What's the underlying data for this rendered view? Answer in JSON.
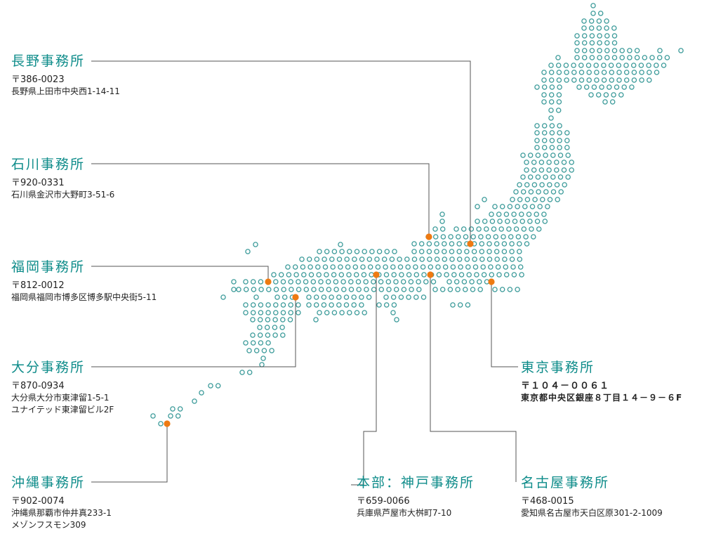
{
  "colors": {
    "dot": "#3a9a99",
    "marker": "#ee7a12",
    "leader": "#555555",
    "title": "#0e8c8a"
  },
  "offices": [
    {
      "id": "nagano",
      "name": "長野事務所",
      "postal": "〒386-0023",
      "address": [
        "長野県上田市中央西1-14-11"
      ]
    },
    {
      "id": "ishikawa",
      "name": "石川事務所",
      "postal": "〒920-0331",
      "address": [
        "石川県金沢市大野町3-51-6"
      ]
    },
    {
      "id": "fukuoka",
      "name": "福岡事務所",
      "postal": "〒812-0012",
      "address": [
        "福岡県福岡市博多区博多駅中央街5-11"
      ]
    },
    {
      "id": "oita",
      "name": "大分事務所",
      "postal": "〒870-0934",
      "address": [
        "大分県大分市東津留1-5-1",
        "ユナイテッド東津留ビル2F"
      ]
    },
    {
      "id": "okinawa",
      "name": "沖縄事務所",
      "postal": "〒902-0074",
      "address": [
        "沖縄県那覇市仲井真233-1",
        "メゾンフスモン309"
      ]
    },
    {
      "id": "kobe",
      "name": "本部：神戸事務所",
      "postal": "〒659-0066",
      "address": [
        "兵庫県芦屋市大桝町7-10"
      ]
    },
    {
      "id": "nagoya",
      "name": "名古屋事務所",
      "postal": "〒468-0015",
      "address": [
        "愛知県名古屋市天白区原301-2-1009"
      ]
    },
    {
      "id": "tokyo",
      "name": "東京事務所",
      "postal": "〒１０４－００６１",
      "address": [
        "東京都中央区銀座８丁目１４－９－６F"
      ]
    }
  ]
}
